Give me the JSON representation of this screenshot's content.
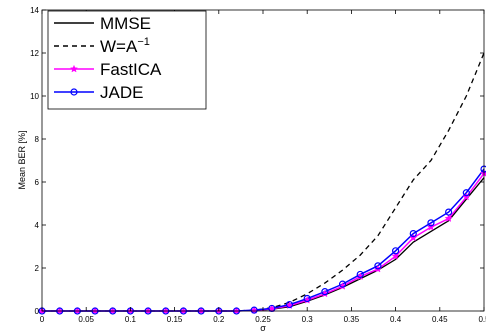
{
  "chart_data": {
    "type": "line",
    "xlabel": "σ",
    "ylabel": "Mean BER [%]",
    "xlim": [
      0,
      0.5
    ],
    "ylim": [
      0,
      14
    ],
    "xticks": [
      0,
      0.05,
      0.1,
      0.15,
      0.2,
      0.25,
      0.3,
      0.35,
      0.4,
      0.45,
      0.5
    ],
    "xtick_labels": [
      "0",
      "0.05",
      "0.1",
      "0.15",
      "0.2",
      "0.25",
      "0.3",
      "0.35",
      "0.4",
      "0.45",
      "0.5"
    ],
    "yticks": [
      0,
      2,
      4,
      6,
      8,
      10,
      12,
      14
    ],
    "ytick_labels": [
      "0",
      "2",
      "4",
      "6",
      "8",
      "10",
      "12",
      "14"
    ],
    "grid": false,
    "legend_position": "top-left",
    "x": [
      0,
      0.02,
      0.04,
      0.06,
      0.08,
      0.1,
      0.12,
      0.14,
      0.16,
      0.18,
      0.2,
      0.22,
      0.24,
      0.26,
      0.28,
      0.3,
      0.32,
      0.34,
      0.36,
      0.38,
      0.4,
      0.42,
      0.44,
      0.46,
      0.48,
      0.5
    ],
    "series": [
      {
        "name": "MMSE",
        "legend_label": "MMSE",
        "color": "#000000",
        "dash": "solid",
        "marker": "none",
        "values": [
          0,
          0,
          0,
          0,
          0,
          0,
          0,
          0,
          0,
          0,
          0,
          0,
          0.02,
          0.08,
          0.2,
          0.45,
          0.75,
          1.1,
          1.5,
          1.9,
          2.4,
          3.2,
          3.7,
          4.2,
          5.2,
          6.2
        ]
      },
      {
        "name": "W=A^-1",
        "legend_label": "W=A",
        "legend_sup": "−1",
        "color": "#000000",
        "dash": "dashed",
        "marker": "none",
        "values": [
          0,
          0,
          0,
          0,
          0,
          0,
          0,
          0,
          0,
          0,
          0,
          0,
          0.04,
          0.15,
          0.4,
          0.8,
          1.3,
          1.9,
          2.6,
          3.5,
          4.8,
          6.1,
          7.0,
          8.4,
          10.0,
          12.0
        ]
      },
      {
        "name": "FastICA",
        "legend_label": "FastICA",
        "color": "#ff00ff",
        "dash": "solid",
        "marker": "star",
        "values": [
          0,
          0,
          0,
          0,
          0,
          0,
          0,
          0,
          0,
          0,
          0,
          0,
          0.03,
          0.1,
          0.25,
          0.5,
          0.8,
          1.15,
          1.6,
          1.95,
          2.55,
          3.4,
          3.9,
          4.3,
          5.3,
          6.4
        ]
      },
      {
        "name": "JADE",
        "legend_label": "JADE",
        "color": "#0000ff",
        "dash": "solid",
        "marker": "circle",
        "values": [
          0,
          0,
          0,
          0,
          0,
          0,
          0,
          0,
          0,
          0,
          0,
          0,
          0.04,
          0.12,
          0.3,
          0.58,
          0.9,
          1.25,
          1.7,
          2.1,
          2.8,
          3.6,
          4.1,
          4.6,
          5.5,
          6.6
        ]
      }
    ]
  }
}
